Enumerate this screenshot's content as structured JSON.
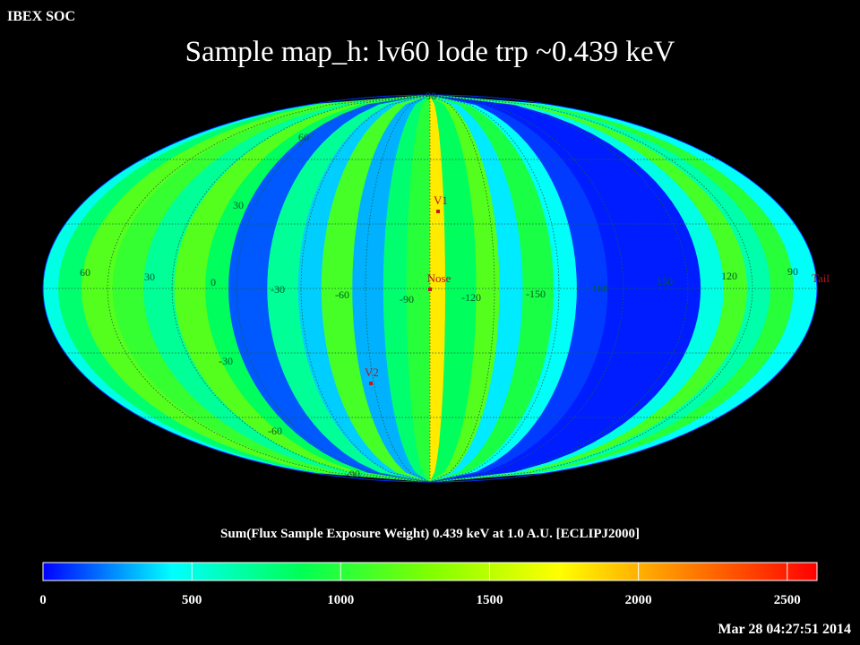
{
  "header": {
    "org": "IBEX SOC",
    "title": "Sample map_h: lv60 lode trp ~0.439 keV",
    "colorbar_label": "Sum(Flux Sample Exposure Weight)  0.439 keV at 1.0 A.U. [ECLIPJ2000]",
    "timestamp": "Mar 28 04:27:51 2014"
  },
  "chart_data": {
    "type": "heatmap",
    "projection": "mollweide",
    "grid": true,
    "lon_labels": [
      "60",
      "30",
      "0",
      "-30",
      "-60",
      "-90",
      "-120",
      "-150",
      "180",
      "150",
      "120",
      "90"
    ],
    "lat_labels": [
      "90",
      "60",
      "30",
      "-30",
      "-60",
      "-90"
    ],
    "colorbar": {
      "min": 0,
      "max": 2600,
      "ticks": [
        0,
        500,
        1000,
        1500,
        2000,
        2500
      ],
      "colors": [
        "#0000ff",
        "#00ffff",
        "#00ff55",
        "#80ff00",
        "#ffff00",
        "#ff8000",
        "#ff0000"
      ]
    },
    "stripes": [
      {
        "from": 0.0,
        "to": 0.02,
        "value": 500
      },
      {
        "from": 0.02,
        "to": 0.05,
        "value": 800
      },
      {
        "from": 0.05,
        "to": 0.09,
        "value": 1150
      },
      {
        "from": 0.09,
        "to": 0.13,
        "value": 1050
      },
      {
        "from": 0.13,
        "to": 0.17,
        "value": 700
      },
      {
        "from": 0.17,
        "to": 0.21,
        "value": 1150
      },
      {
        "from": 0.21,
        "to": 0.24,
        "value": 850
      },
      {
        "from": 0.24,
        "to": 0.29,
        "value": 150
      },
      {
        "from": 0.29,
        "to": 0.33,
        "value": 700
      },
      {
        "from": 0.33,
        "to": 0.36,
        "value": 350
      },
      {
        "from": 0.36,
        "to": 0.4,
        "value": 1100
      },
      {
        "from": 0.4,
        "to": 0.44,
        "value": 300
      },
      {
        "from": 0.44,
        "to": 0.47,
        "value": 800
      },
      {
        "from": 0.47,
        "to": 0.5,
        "value": 1000
      },
      {
        "from": 0.5,
        "to": 0.52,
        "value": 1800
      },
      {
        "from": 0.52,
        "to": 0.56,
        "value": 850
      },
      {
        "from": 0.56,
        "to": 0.59,
        "value": 1150
      },
      {
        "from": 0.59,
        "to": 0.62,
        "value": 400
      },
      {
        "from": 0.62,
        "to": 0.66,
        "value": 950
      },
      {
        "from": 0.66,
        "to": 0.69,
        "value": 450
      },
      {
        "from": 0.69,
        "to": 0.73,
        "value": 100
      },
      {
        "from": 0.73,
        "to": 0.85,
        "value": 50
      },
      {
        "from": 0.85,
        "to": 0.88,
        "value": 500
      },
      {
        "from": 0.88,
        "to": 0.91,
        "value": 1100
      },
      {
        "from": 0.91,
        "to": 0.94,
        "value": 650
      },
      {
        "from": 0.94,
        "to": 0.97,
        "value": 1000
      },
      {
        "from": 0.97,
        "to": 1.0,
        "value": 450
      }
    ],
    "markers": [
      {
        "name": "V1"
      },
      {
        "name": "Nose"
      },
      {
        "name": "V2"
      },
      {
        "name": "Tail"
      }
    ]
  }
}
